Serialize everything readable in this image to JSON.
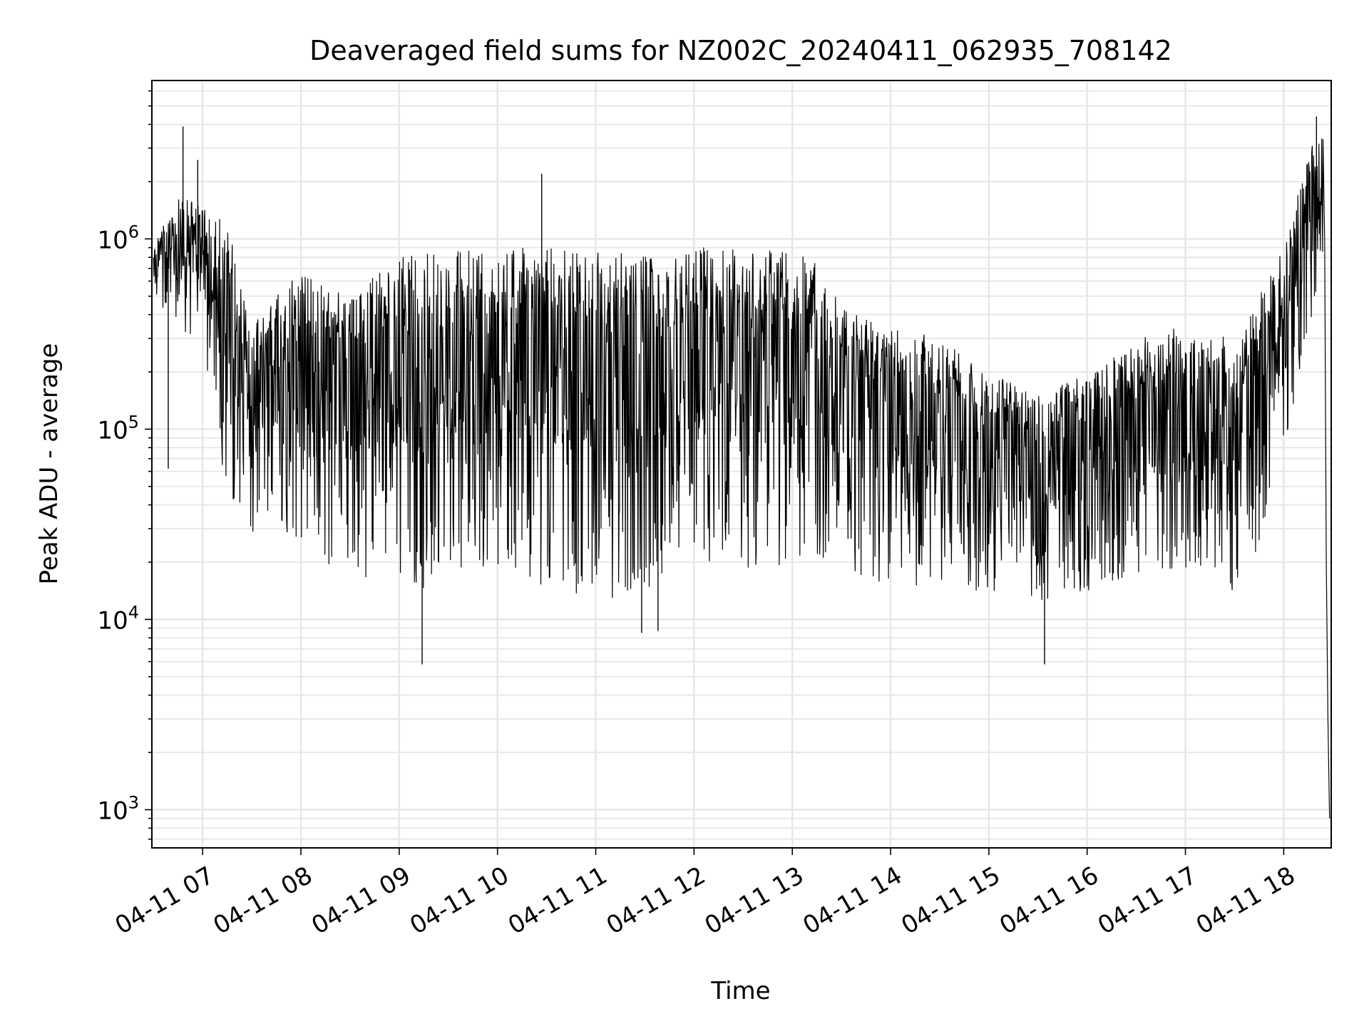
{
  "chart_data": {
    "type": "line",
    "title": "Deaveraged field sums for NZ002C_20240411_062935_708142",
    "xlabel": "Time",
    "ylabel": "Peak ADU - average",
    "y_scale": "log",
    "ylim": [
      630,
      6800000
    ],
    "xlim": [
      "2024-04-11 06:29",
      "2024-04-11 18:29"
    ],
    "grid": true,
    "grid_color": "#e6e6e6",
    "line_color": "#000000",
    "x_ticks": [
      "04-11 07",
      "04-11 08",
      "04-11 09",
      "04-11 10",
      "04-11 11",
      "04-11 12",
      "04-11 13",
      "04-11 14",
      "04-11 15",
      "04-11 16",
      "04-11 17",
      "04-11 18"
    ],
    "y_ticks": [
      {
        "value": 1000,
        "base": "10",
        "exp": "3"
      },
      {
        "value": 10000,
        "base": "10",
        "exp": "4"
      },
      {
        "value": 100000,
        "base": "10",
        "exp": "5"
      },
      {
        "value": 1000000,
        "base": "10",
        "exp": "6"
      }
    ],
    "envelope": [
      {
        "t": "2024-04-11 06:30",
        "low": 400000,
        "high": 1000000
      },
      {
        "t": "2024-04-11 06:45",
        "low": 350000,
        "high": 1700000
      },
      {
        "t": "2024-04-11 07:00",
        "low": 200000,
        "high": 1500000
      },
      {
        "t": "2024-04-11 07:15",
        "low": 40000,
        "high": 1200000
      },
      {
        "t": "2024-04-11 07:30",
        "low": 25000,
        "high": 350000
      },
      {
        "t": "2024-04-11 07:45",
        "low": 25000,
        "high": 500000
      },
      {
        "t": "2024-04-11 08:00",
        "low": 20000,
        "high": 700000
      },
      {
        "t": "2024-04-11 08:15",
        "low": 15000,
        "high": 600000
      },
      {
        "t": "2024-04-11 08:30",
        "low": 13000,
        "high": 500000
      },
      {
        "t": "2024-04-11 08:45",
        "low": 13000,
        "high": 700000
      },
      {
        "t": "2024-04-11 09:00",
        "low": 12000,
        "high": 850000
      },
      {
        "t": "2024-04-11 09:15",
        "low": 10000,
        "high": 850000
      },
      {
        "t": "2024-04-11 09:30",
        "low": 15000,
        "high": 850000
      },
      {
        "t": "2024-04-11 09:45",
        "low": 15000,
        "high": 900000
      },
      {
        "t": "2024-04-11 10:00",
        "low": 14000,
        "high": 950000
      },
      {
        "t": "2024-04-11 10:30",
        "low": 11000,
        "high": 900000
      },
      {
        "t": "2024-04-11 11:00",
        "low": 10000,
        "high": 850000
      },
      {
        "t": "2024-04-11 11:30",
        "low": 10000,
        "high": 850000
      },
      {
        "t": "2024-04-11 12:00",
        "low": 13000,
        "high": 900000
      },
      {
        "t": "2024-04-11 12:15",
        "low": 15000,
        "high": 1000000
      },
      {
        "t": "2024-04-11 12:30",
        "low": 15000,
        "high": 900000
      },
      {
        "t": "2024-04-11 13:00",
        "low": 14000,
        "high": 850000
      },
      {
        "t": "2024-04-11 13:15",
        "low": 14000,
        "high": 800000
      },
      {
        "t": "2024-04-11 13:30",
        "low": 14000,
        "high": 450000
      },
      {
        "t": "2024-04-11 14:00",
        "low": 13000,
        "high": 350000
      },
      {
        "t": "2024-04-11 14:30",
        "low": 12000,
        "high": 300000
      },
      {
        "t": "2024-04-11 15:00",
        "low": 12000,
        "high": 200000
      },
      {
        "t": "2024-04-11 15:30",
        "low": 11000,
        "high": 150000
      },
      {
        "t": "2024-04-11 16:00",
        "low": 12000,
        "high": 200000
      },
      {
        "t": "2024-04-11 16:30",
        "low": 15000,
        "high": 300000
      },
      {
        "t": "2024-04-11 17:00",
        "low": 13000,
        "high": 350000
      },
      {
        "t": "2024-04-11 17:30",
        "low": 12000,
        "high": 300000
      },
      {
        "t": "2024-04-11 17:45",
        "low": 20000,
        "high": 500000
      },
      {
        "t": "2024-04-11 18:00",
        "low": 60000,
        "high": 900000
      },
      {
        "t": "2024-04-11 18:15",
        "low": 300000,
        "high": 3000000
      },
      {
        "t": "2024-04-11 18:24",
        "low": 500000,
        "high": 3500000
      }
    ],
    "spikes": [
      {
        "t": "2024-04-11 06:48",
        "y": 3900000
      },
      {
        "t": "2024-04-11 06:57",
        "y": 2600000
      },
      {
        "t": "2024-04-11 10:27",
        "y": 2200000
      },
      {
        "t": "2024-04-11 18:20",
        "y": 4400000
      },
      {
        "t": "2024-04-11 09:14",
        "y": 5800
      },
      {
        "t": "2024-04-11 15:34",
        "y": 5800
      },
      {
        "t": "2024-04-11 06:39",
        "y": 62000
      },
      {
        "t": "2024-04-11 11:28",
        "y": 8500
      },
      {
        "t": "2024-04-11 11:38",
        "y": 8700
      }
    ],
    "end_drop": [
      {
        "t": "2024-04-11 18:25",
        "y": 1000000
      },
      {
        "t": "2024-04-11 18:26",
        "y": 20000
      },
      {
        "t": "2024-04-11 18:27",
        "y": 3000
      },
      {
        "t": "2024-04-11 18:28",
        "y": 900
      }
    ]
  }
}
